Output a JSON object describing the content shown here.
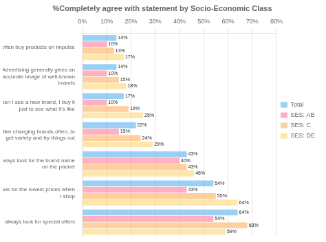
{
  "chart_data": {
    "type": "bar",
    "orientation": "horizontal",
    "title": "%Completely agree with statement by Socio-Economic Class",
    "categories": [
      "I often buy products on impulse",
      "Advertising generally gives an\naccurate image of well-known\nbrands",
      "When I see a new brand, I buy it\njust to see what it's like",
      "I like changing brands often, to\nget variety and try things out",
      "I always look for the brand name\non the packet",
      "I look for the lowest prices when\nI shop",
      "I always look for special offers"
    ],
    "series": [
      {
        "name": "Total",
        "values": [
          14,
          14,
          17,
          22,
          43,
          54,
          64
        ],
        "value_labels": [
          "14%",
          "14%",
          "17%",
          "22%",
          "43%",
          "54%",
          "64%"
        ]
      },
      {
        "name": "SES: AB",
        "values": [
          10,
          10,
          10,
          15,
          40,
          43,
          54
        ],
        "value_labels": [
          "10%",
          "10%",
          "10%",
          "15%",
          "40%",
          "43%",
          "54%"
        ]
      },
      {
        "name": "SES: C",
        "values": [
          13,
          15,
          19,
          24,
          43,
          55,
          68
        ],
        "value_labels": [
          "13%",
          "15%",
          "19%",
          "24%",
          "43%",
          "55%",
          "68%"
        ]
      },
      {
        "name": "SES: DE",
        "values": [
          17,
          18,
          25,
          29,
          46,
          64,
          59
        ],
        "value_labels": [
          "17%",
          "18%",
          "25%",
          "29%",
          "46%",
          "64%",
          "59%"
        ]
      }
    ],
    "xlim": [
      0,
      80
    ],
    "xticks": [
      {
        "value": 0,
        "label": "0%"
      },
      {
        "value": 10,
        "label": "10%"
      },
      {
        "value": 20,
        "label": "20%"
      },
      {
        "value": 30,
        "label": "30%"
      },
      {
        "value": 40,
        "label": "40%"
      },
      {
        "value": 50,
        "label": "50%"
      },
      {
        "value": 60,
        "label": "60%"
      },
      {
        "value": 70,
        "label": "70%"
      },
      {
        "value": 80,
        "label": "80%"
      }
    ],
    "grid": true,
    "legend": "right",
    "data_labels": true
  }
}
